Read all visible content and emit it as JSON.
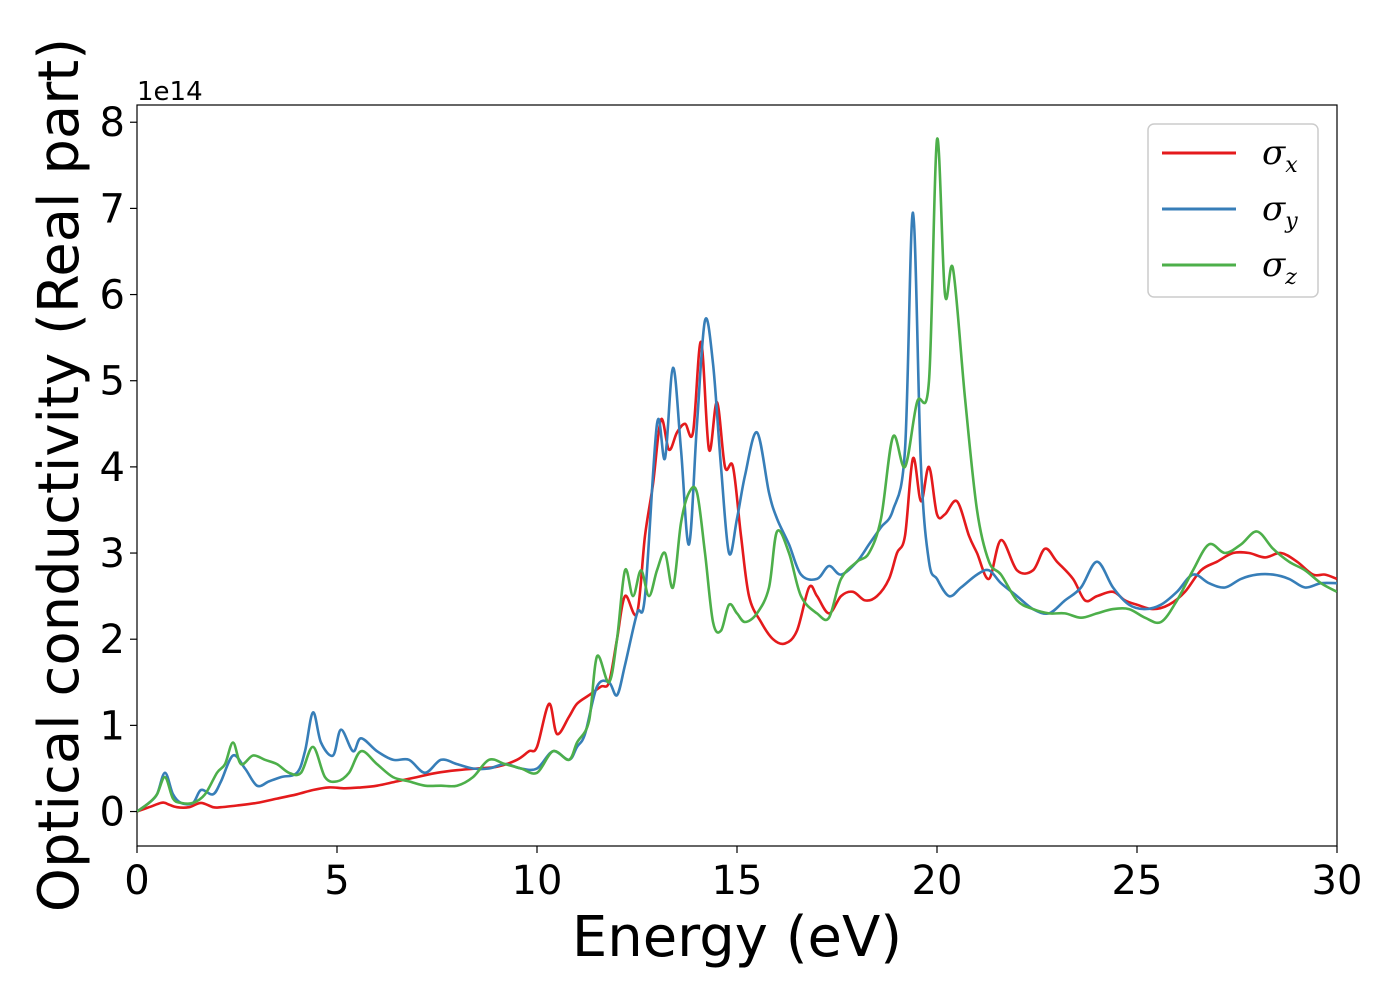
{
  "chart_data": {
    "type": "line",
    "title": "",
    "xlabel": "Energy (eV)",
    "ylabel": "Optical conductivity (Real part)",
    "y_offset_label": "1e14",
    "xlim": [
      0,
      30
    ],
    "ylim": [
      -0.4,
      8.2
    ],
    "xticks": [
      0,
      5,
      10,
      15,
      20,
      25,
      30
    ],
    "yticks": [
      0,
      1,
      2,
      3,
      4,
      5,
      6,
      7,
      8
    ],
    "grid": false,
    "legend_position": "top-right",
    "series": [
      {
        "name": "σx",
        "symbol": "σ",
        "subscript": "x",
        "color": "#e41a1c",
        "x": [
          0,
          0.3,
          0.6,
          0.7,
          0.8,
          1.0,
          1.3,
          1.6,
          1.9,
          2.1,
          2.5,
          3.0,
          3.5,
          4.0,
          4.4,
          4.8,
          5.2,
          5.6,
          6.0,
          6.5,
          7.0,
          7.5,
          8.0,
          8.5,
          9.0,
          9.5,
          9.8,
          10.0,
          10.3,
          10.5,
          10.8,
          11.0,
          11.3,
          11.6,
          11.8,
          12.0,
          12.2,
          12.5,
          12.7,
          12.9,
          13.1,
          13.3,
          13.5,
          13.7,
          13.9,
          14.1,
          14.3,
          14.5,
          14.7,
          14.9,
          15.1,
          15.3,
          15.6,
          15.9,
          16.2,
          16.5,
          16.8,
          17.0,
          17.3,
          17.6,
          17.9,
          18.2,
          18.5,
          18.8,
          19.0,
          19.2,
          19.4,
          19.6,
          19.8,
          20.0,
          20.2,
          20.5,
          20.8,
          21.0,
          21.3,
          21.6,
          22.0,
          22.4,
          22.7,
          23.0,
          23.4,
          23.7,
          24.0,
          24.4,
          24.7,
          25.0,
          25.4,
          25.8,
          26.2,
          26.6,
          27.0,
          27.4,
          27.8,
          28.2,
          28.6,
          29.0,
          29.4,
          29.7,
          30.0
        ],
        "y": [
          0,
          0.05,
          0.1,
          0.1,
          0.08,
          0.05,
          0.05,
          0.1,
          0.05,
          0.05,
          0.07,
          0.1,
          0.15,
          0.2,
          0.25,
          0.28,
          0.27,
          0.28,
          0.3,
          0.35,
          0.4,
          0.45,
          0.48,
          0.5,
          0.52,
          0.6,
          0.7,
          0.75,
          1.25,
          0.9,
          1.1,
          1.25,
          1.35,
          1.45,
          1.5,
          2.0,
          2.5,
          2.3,
          3.2,
          3.8,
          4.55,
          4.2,
          4.4,
          4.5,
          4.4,
          5.45,
          4.2,
          4.75,
          4.0,
          4.0,
          3.2,
          2.5,
          2.2,
          2.0,
          1.95,
          2.1,
          2.6,
          2.5,
          2.3,
          2.5,
          2.55,
          2.45,
          2.5,
          2.7,
          3.0,
          3.2,
          4.1,
          3.6,
          4.0,
          3.45,
          3.45,
          3.6,
          3.2,
          3.0,
          2.7,
          3.15,
          2.8,
          2.8,
          3.05,
          2.9,
          2.7,
          2.45,
          2.5,
          2.55,
          2.45,
          2.4,
          2.35,
          2.4,
          2.55,
          2.8,
          2.9,
          3.0,
          3.0,
          2.95,
          3.0,
          2.9,
          2.75,
          2.75,
          2.7
        ]
      },
      {
        "name": "σy",
        "symbol": "σ",
        "subscript": "y",
        "color": "#377eb8",
        "x": [
          0,
          0.3,
          0.5,
          0.7,
          0.9,
          1.1,
          1.4,
          1.6,
          1.9,
          2.1,
          2.4,
          2.7,
          3.0,
          3.3,
          3.6,
          4.0,
          4.2,
          4.4,
          4.6,
          4.9,
          5.1,
          5.4,
          5.6,
          6.0,
          6.4,
          6.8,
          7.2,
          7.6,
          8.0,
          8.4,
          8.8,
          9.2,
          9.6,
          10.0,
          10.4,
          10.8,
          11.0,
          11.2,
          11.5,
          11.8,
          12.0,
          12.2,
          12.5,
          12.7,
          13.0,
          13.2,
          13.4,
          13.6,
          13.8,
          14.0,
          14.2,
          14.4,
          14.6,
          14.8,
          15.0,
          15.2,
          15.5,
          15.8,
          16.0,
          16.3,
          16.6,
          17.0,
          17.3,
          17.6,
          18.0,
          18.3,
          18.6,
          18.9,
          19.2,
          19.4,
          19.6,
          19.8,
          20.0,
          20.3,
          20.6,
          21.0,
          21.3,
          21.6,
          22.0,
          22.4,
          22.8,
          23.2,
          23.6,
          24.0,
          24.4,
          24.8,
          25.2,
          25.6,
          26.0,
          26.4,
          26.8,
          27.2,
          27.6,
          28.0,
          28.4,
          28.8,
          29.2,
          29.6,
          30.0
        ],
        "y": [
          0,
          0.1,
          0.2,
          0.45,
          0.2,
          0.1,
          0.1,
          0.25,
          0.2,
          0.35,
          0.65,
          0.5,
          0.3,
          0.35,
          0.4,
          0.45,
          0.7,
          1.15,
          0.8,
          0.65,
          0.95,
          0.7,
          0.85,
          0.7,
          0.6,
          0.6,
          0.45,
          0.6,
          0.55,
          0.5,
          0.5,
          0.55,
          0.5,
          0.5,
          0.7,
          0.6,
          0.75,
          0.9,
          1.45,
          1.5,
          1.35,
          1.7,
          2.3,
          2.5,
          4.5,
          4.1,
          5.15,
          4.2,
          3.1,
          4.5,
          5.7,
          5.2,
          4.0,
          3.0,
          3.4,
          3.9,
          4.4,
          3.7,
          3.4,
          3.1,
          2.75,
          2.7,
          2.85,
          2.75,
          2.9,
          3.1,
          3.3,
          3.5,
          4.2,
          6.95,
          4.0,
          2.9,
          2.7,
          2.5,
          2.6,
          2.75,
          2.8,
          2.65,
          2.5,
          2.35,
          2.3,
          2.45,
          2.6,
          2.9,
          2.6,
          2.4,
          2.35,
          2.4,
          2.55,
          2.75,
          2.65,
          2.6,
          2.7,
          2.75,
          2.75,
          2.7,
          2.6,
          2.65,
          2.65
        ]
      },
      {
        "name": "σz",
        "symbol": "σ",
        "subscript": "z",
        "color": "#4daf4a",
        "x": [
          0,
          0.3,
          0.5,
          0.7,
          0.9,
          1.1,
          1.4,
          1.7,
          2.0,
          2.2,
          2.4,
          2.6,
          2.9,
          3.2,
          3.5,
          3.8,
          4.1,
          4.4,
          4.7,
          5.0,
          5.3,
          5.6,
          6.0,
          6.4,
          6.8,
          7.2,
          7.6,
          8.0,
          8.4,
          8.8,
          9.2,
          9.6,
          10.0,
          10.4,
          10.8,
          11.0,
          11.3,
          11.5,
          11.8,
          12.0,
          12.2,
          12.4,
          12.6,
          12.8,
          13.0,
          13.2,
          13.4,
          13.6,
          13.8,
          14.0,
          14.2,
          14.4,
          14.6,
          14.8,
          15.0,
          15.2,
          15.5,
          15.8,
          16.0,
          16.3,
          16.6,
          17.0,
          17.3,
          17.6,
          18.0,
          18.3,
          18.6,
          18.9,
          19.2,
          19.5,
          19.8,
          20.0,
          20.2,
          20.4,
          20.7,
          21.0,
          21.3,
          21.6,
          22.0,
          22.4,
          22.8,
          23.2,
          23.6,
          24.0,
          24.4,
          24.8,
          25.2,
          25.6,
          26.0,
          26.4,
          26.8,
          27.2,
          27.6,
          28.0,
          28.4,
          28.8,
          29.2,
          29.6,
          30.0
        ],
        "y": [
          0,
          0.1,
          0.2,
          0.4,
          0.15,
          0.1,
          0.1,
          0.2,
          0.45,
          0.55,
          0.8,
          0.55,
          0.65,
          0.6,
          0.55,
          0.45,
          0.45,
          0.75,
          0.4,
          0.35,
          0.45,
          0.7,
          0.55,
          0.4,
          0.35,
          0.3,
          0.3,
          0.3,
          0.4,
          0.6,
          0.55,
          0.5,
          0.45,
          0.7,
          0.6,
          0.8,
          1.05,
          1.8,
          1.5,
          2.0,
          2.8,
          2.5,
          2.8,
          2.5,
          2.8,
          3.0,
          2.6,
          3.35,
          3.7,
          3.7,
          3.0,
          2.2,
          2.1,
          2.4,
          2.3,
          2.2,
          2.3,
          2.6,
          3.25,
          3.0,
          2.5,
          2.3,
          2.25,
          2.7,
          2.9,
          3.0,
          3.4,
          4.35,
          4.0,
          4.75,
          5.0,
          7.8,
          6.0,
          6.3,
          4.8,
          3.5,
          2.9,
          2.75,
          2.45,
          2.35,
          2.3,
          2.3,
          2.25,
          2.3,
          2.35,
          2.35,
          2.25,
          2.2,
          2.45,
          2.8,
          3.1,
          3.0,
          3.1,
          3.25,
          3.05,
          2.9,
          2.8,
          2.65,
          2.55
        ]
      }
    ]
  }
}
